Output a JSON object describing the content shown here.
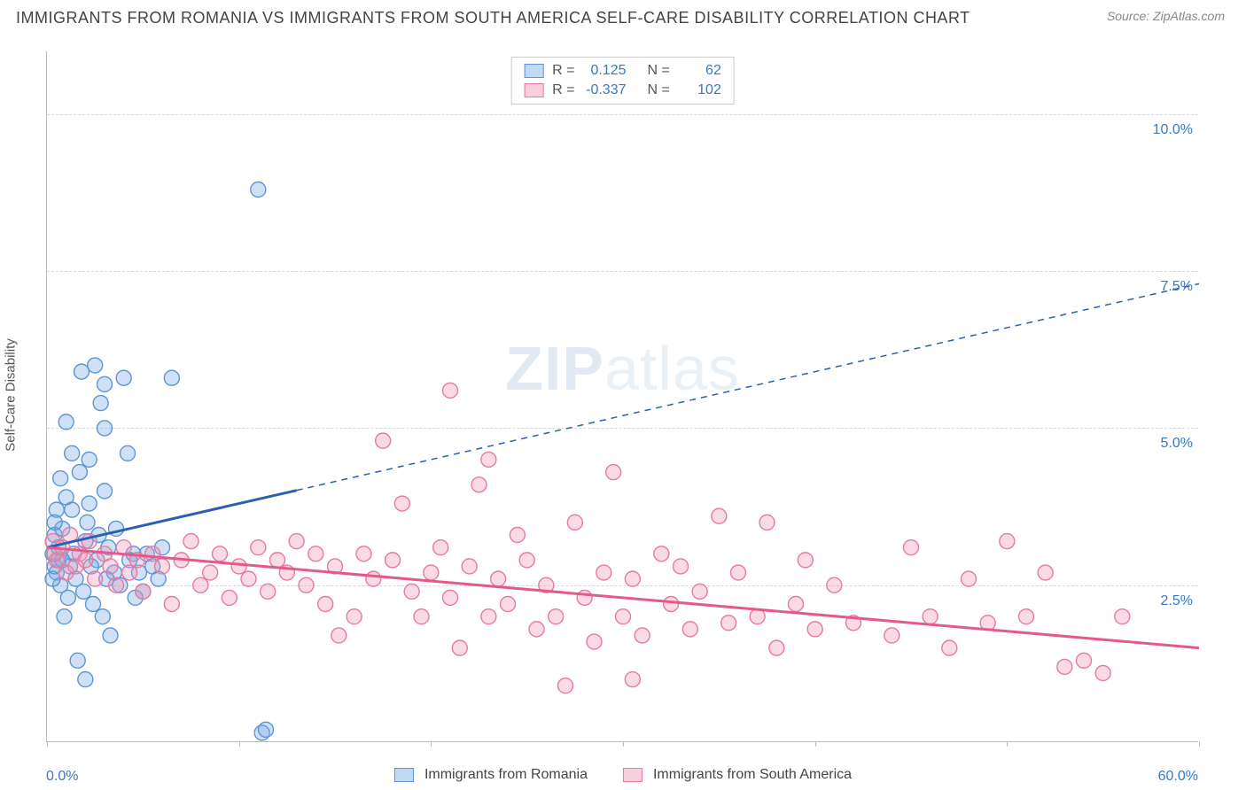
{
  "title": "IMMIGRANTS FROM ROMANIA VS IMMIGRANTS FROM SOUTH AMERICA SELF-CARE DISABILITY CORRELATION CHART",
  "source_label": "Source: ",
  "source_value": "ZipAtlas.com",
  "y_axis_title": "Self-Care Disability",
  "watermark_bold": "ZIP",
  "watermark_light": "atlas",
  "chart": {
    "xlim": [
      0,
      60
    ],
    "ylim": [
      0,
      11
    ],
    "y_ticks": [
      2.5,
      5.0,
      7.5,
      10.0
    ],
    "y_tick_labels": [
      "2.5%",
      "5.0%",
      "7.5%",
      "10.0%"
    ],
    "x_ticks": [
      0,
      10,
      20,
      30,
      40,
      50,
      60
    ],
    "x_origin_label": "0.0%",
    "x_max_label": "60.0%",
    "grid_color": "#d8d8d8",
    "axis_color": "#bbbbbb"
  },
  "series": [
    {
      "name": "Immigrants from Romania",
      "fill": "rgba(120,170,230,0.35)",
      "stroke": "#5b95d6",
      "line_stroke": "#2b5fb0",
      "swatch_fill": "rgba(120,170,230,0.45)",
      "swatch_border": "#5b95d6",
      "R": "0.125",
      "N": "62",
      "trend": {
        "x1": 0,
        "y1": 3.1,
        "x2": 60,
        "y2": 7.3,
        "solid_until_x": 13
      },
      "points": [
        [
          0.3,
          3.0
        ],
        [
          0.5,
          2.7
        ],
        [
          0.4,
          3.3
        ],
        [
          0.6,
          2.9
        ],
        [
          0.8,
          3.4
        ],
        [
          0.7,
          2.5
        ],
        [
          1.0,
          3.9
        ],
        [
          1.2,
          2.8
        ],
        [
          1.0,
          5.1
        ],
        [
          1.4,
          3.0
        ],
        [
          1.5,
          2.6
        ],
        [
          1.3,
          4.6
        ],
        [
          1.8,
          5.9
        ],
        [
          2.0,
          3.2
        ],
        [
          1.9,
          2.4
        ],
        [
          2.2,
          4.5
        ],
        [
          2.5,
          6.0
        ],
        [
          2.1,
          3.5
        ],
        [
          2.6,
          2.9
        ],
        [
          2.8,
          5.4
        ],
        [
          3.0,
          4.0
        ],
        [
          3.2,
          3.1
        ],
        [
          3.5,
          2.7
        ],
        [
          3.0,
          5.7
        ],
        [
          3.8,
          2.5
        ],
        [
          4.0,
          5.8
        ],
        [
          4.2,
          4.6
        ],
        [
          4.5,
          3.0
        ],
        [
          4.8,
          2.7
        ],
        [
          5.0,
          2.4
        ],
        [
          2.0,
          1.0
        ],
        [
          3.3,
          1.7
        ],
        [
          1.6,
          1.3
        ],
        [
          0.9,
          2.0
        ],
        [
          1.1,
          2.3
        ],
        [
          0.5,
          3.7
        ],
        [
          0.7,
          4.2
        ],
        [
          0.3,
          2.6
        ],
        [
          0.4,
          2.8
        ],
        [
          0.6,
          3.1
        ],
        [
          0.8,
          2.9
        ],
        [
          2.3,
          2.8
        ],
        [
          2.7,
          3.3
        ],
        [
          3.1,
          2.6
        ],
        [
          3.6,
          3.4
        ],
        [
          4.3,
          2.9
        ],
        [
          5.2,
          3.0
        ],
        [
          5.5,
          2.8
        ],
        [
          5.8,
          2.6
        ],
        [
          6.0,
          3.1
        ],
        [
          6.5,
          5.8
        ],
        [
          11.0,
          8.8
        ],
        [
          11.2,
          0.15
        ],
        [
          11.4,
          0.2
        ],
        [
          3.0,
          5.0
        ],
        [
          1.7,
          4.3
        ],
        [
          2.2,
          3.8
        ],
        [
          0.4,
          3.5
        ],
        [
          1.3,
          3.7
        ],
        [
          2.4,
          2.2
        ],
        [
          2.9,
          2.0
        ],
        [
          4.6,
          2.3
        ]
      ]
    },
    {
      "name": "Immigrants from South America",
      "fill": "rgba(240,150,180,0.35)",
      "stroke": "#e77aa0",
      "line_stroke": "#e35a8a",
      "swatch_fill": "rgba(240,150,180,0.45)",
      "swatch_border": "#e77aa0",
      "R": "-0.337",
      "N": "102",
      "trend": {
        "x1": 0,
        "y1": 3.1,
        "x2": 60,
        "y2": 1.5,
        "solid_until_x": 60
      },
      "points": [
        [
          0.3,
          3.2
        ],
        [
          0.5,
          2.9
        ],
        [
          0.4,
          3.0
        ],
        [
          0.8,
          3.1
        ],
        [
          1.0,
          2.7
        ],
        [
          1.2,
          3.3
        ],
        [
          1.5,
          2.8
        ],
        [
          1.7,
          3.0
        ],
        [
          2.0,
          2.9
        ],
        [
          2.2,
          3.2
        ],
        [
          2.5,
          2.6
        ],
        [
          3.0,
          3.0
        ],
        [
          3.3,
          2.8
        ],
        [
          3.6,
          2.5
        ],
        [
          4.0,
          3.1
        ],
        [
          4.3,
          2.7
        ],
        [
          4.7,
          2.9
        ],
        [
          5.0,
          2.4
        ],
        [
          5.5,
          3.0
        ],
        [
          6.0,
          2.8
        ],
        [
          6.5,
          2.2
        ],
        [
          7.0,
          2.9
        ],
        [
          7.5,
          3.2
        ],
        [
          8.0,
          2.5
        ],
        [
          8.5,
          2.7
        ],
        [
          9.0,
          3.0
        ],
        [
          9.5,
          2.3
        ],
        [
          10.0,
          2.8
        ],
        [
          10.5,
          2.6
        ],
        [
          11.0,
          3.1
        ],
        [
          11.5,
          2.4
        ],
        [
          12.0,
          2.9
        ],
        [
          12.5,
          2.7
        ],
        [
          13.0,
          3.2
        ],
        [
          13.5,
          2.5
        ],
        [
          14.0,
          3.0
        ],
        [
          14.5,
          2.2
        ],
        [
          15.0,
          2.8
        ],
        [
          15.2,
          1.7
        ],
        [
          16.0,
          2.0
        ],
        [
          16.5,
          3.0
        ],
        [
          17.0,
          2.6
        ],
        [
          17.5,
          4.8
        ],
        [
          18.0,
          2.9
        ],
        [
          18.5,
          3.8
        ],
        [
          19.0,
          2.4
        ],
        [
          19.5,
          2.0
        ],
        [
          20.0,
          2.7
        ],
        [
          20.5,
          3.1
        ],
        [
          21.0,
          2.3
        ],
        [
          21.0,
          5.6
        ],
        [
          21.5,
          1.5
        ],
        [
          22.5,
          4.1
        ],
        [
          22.0,
          2.8
        ],
        [
          23.0,
          4.5
        ],
        [
          23.0,
          2.0
        ],
        [
          23.5,
          2.6
        ],
        [
          24.0,
          2.2
        ],
        [
          24.5,
          3.3
        ],
        [
          25.0,
          2.9
        ],
        [
          25.5,
          1.8
        ],
        [
          26.0,
          2.5
        ],
        [
          26.5,
          2.0
        ],
        [
          27.0,
          0.9
        ],
        [
          27.5,
          3.5
        ],
        [
          28.0,
          2.3
        ],
        [
          28.5,
          1.6
        ],
        [
          29.0,
          2.7
        ],
        [
          29.5,
          4.3
        ],
        [
          30.0,
          2.0
        ],
        [
          30.5,
          2.6
        ],
        [
          30.5,
          1.0
        ],
        [
          31.0,
          1.7
        ],
        [
          32.0,
          3.0
        ],
        [
          32.5,
          2.2
        ],
        [
          33.0,
          2.8
        ],
        [
          33.5,
          1.8
        ],
        [
          34.0,
          2.4
        ],
        [
          35.0,
          3.6
        ],
        [
          35.5,
          1.9
        ],
        [
          36.0,
          2.7
        ],
        [
          37.0,
          2.0
        ],
        [
          37.5,
          3.5
        ],
        [
          38.0,
          1.5
        ],
        [
          39.0,
          2.2
        ],
        [
          39.5,
          2.9
        ],
        [
          40.0,
          1.8
        ],
        [
          41.0,
          2.5
        ],
        [
          42.0,
          1.9
        ],
        [
          44.0,
          1.7
        ],
        [
          45.0,
          3.1
        ],
        [
          46.0,
          2.0
        ],
        [
          47.0,
          1.5
        ],
        [
          48.0,
          2.6
        ],
        [
          49.0,
          1.9
        ],
        [
          50.0,
          3.2
        ],
        [
          51.0,
          2.0
        ],
        [
          52.0,
          2.7
        ],
        [
          53.0,
          1.2
        ],
        [
          54.0,
          1.3
        ],
        [
          55.0,
          1.1
        ],
        [
          56.0,
          2.0
        ]
      ]
    }
  ],
  "stats_labels": {
    "R": "R =",
    "N": "N ="
  },
  "bottom_legend_items": [
    0,
    1
  ]
}
